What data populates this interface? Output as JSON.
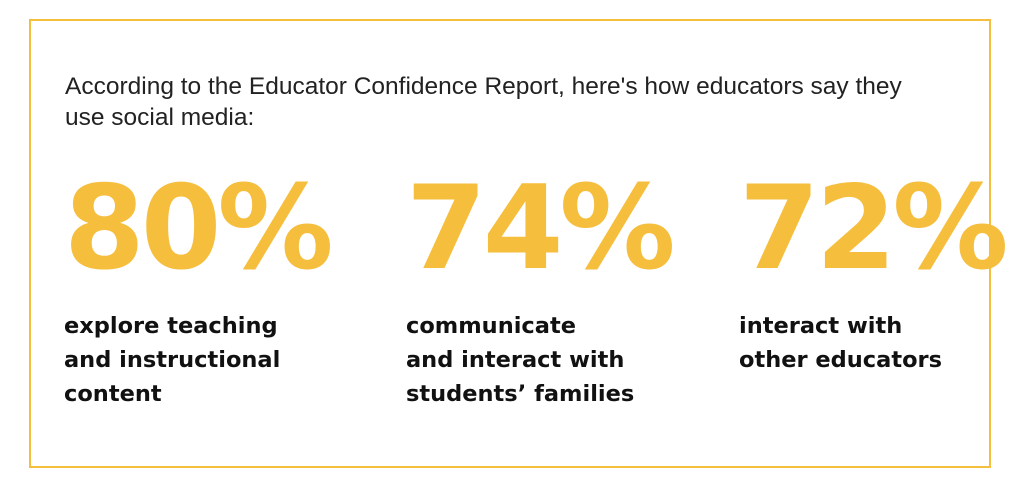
{
  "theme": {
    "accent_color": "#F6BE3D",
    "text_color": "#111111"
  },
  "intro": {
    "text": "According to the Educator Confidence Report, here's how educators say they use social media:"
  },
  "stats": [
    {
      "value": "80%",
      "description": "explore teaching\nand instructional\ncontent"
    },
    {
      "value": "74%",
      "description": "communicate\nand interact with\nstudents’ families"
    },
    {
      "value": "72%",
      "description": "interact with\nother educators"
    }
  ]
}
